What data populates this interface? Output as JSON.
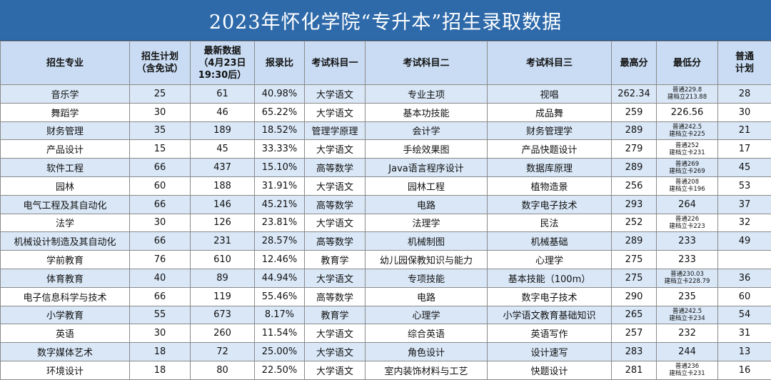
{
  "title": "2023年怀化学院“专升本”招生录取数据",
  "headers": [
    "招生专业",
    "招生计划\n（含免试）",
    "最新数据\n（4月23日\n19:30后）",
    "报录比",
    "考试科目一",
    "考试科目二",
    "考试科目三",
    "最高分",
    "最低分",
    "普通\n计划"
  ],
  "rows": [
    {
      "major": "音乐学",
      "plan": "25",
      "latest": "61",
      "ratio": "40.98%",
      "subj1": "大学语文",
      "subj2": "专业主项",
      "subj3": "视唱",
      "max": "262.34",
      "min_a": "普通229.8",
      "min_b": "建档立213.88",
      "normal": "28"
    },
    {
      "major": "舞蹈学",
      "plan": "30",
      "latest": "46",
      "ratio": "65.22%",
      "subj1": "大学语文",
      "subj2": "基本功技能",
      "subj3": "成品舞",
      "max": "259",
      "min_a": "226.56",
      "min_b": "",
      "normal": "30"
    },
    {
      "major": "财务管理",
      "plan": "35",
      "latest": "189",
      "ratio": "18.52%",
      "subj1": "管理学原理",
      "subj2": "会计学",
      "subj3": "财务管理学",
      "max": "289",
      "min_a": "普通242.5",
      "min_b": "建档立卡225",
      "normal": "21"
    },
    {
      "major": "产品设计",
      "plan": "15",
      "latest": "45",
      "ratio": "33.33%",
      "subj1": "大学语文",
      "subj2": "手绘效果图",
      "subj3": "产品快题设计",
      "max": "279",
      "min_a": "普通252",
      "min_b": "建档立卡231",
      "normal": "17"
    },
    {
      "major": "软件工程",
      "plan": "66",
      "latest": "437",
      "ratio": "15.10%",
      "subj1": "高等数学",
      "subj2": "Java语言程序设计",
      "subj3": "数据库原理",
      "max": "289",
      "min_a": "普通269",
      "min_b": "建档立卡269",
      "normal": "45"
    },
    {
      "major": "园林",
      "plan": "60",
      "latest": "188",
      "ratio": "31.91%",
      "subj1": "大学语文",
      "subj2": "园林工程",
      "subj3": "植物造景",
      "max": "256",
      "min_a": "普通208",
      "min_b": "建档立卡196",
      "normal": "53"
    },
    {
      "major": "电气工程及其自动化",
      "plan": "66",
      "latest": "146",
      "ratio": "45.21%",
      "subj1": "高等数学",
      "subj2": "电路",
      "subj3": "数字电子技术",
      "max": "293",
      "min_a": "264",
      "min_b": "",
      "normal": "37"
    },
    {
      "major": "法学",
      "plan": "30",
      "latest": "126",
      "ratio": "23.81%",
      "subj1": "大学语文",
      "subj2": "法理学",
      "subj3": "民法",
      "max": "252",
      "min_a": "普通226",
      "min_b": "建档立卡223",
      "normal": "32"
    },
    {
      "major": "机械设计制造及其自动化",
      "plan": "66",
      "latest": "231",
      "ratio": "28.57%",
      "subj1": "高等数学",
      "subj2": "机械制图",
      "subj3": "机械基础",
      "max": "289",
      "min_a": "233",
      "min_b": "",
      "normal": "49"
    },
    {
      "major": "学前教育",
      "plan": "76",
      "latest": "610",
      "ratio": "12.46%",
      "subj1": "教育学",
      "subj2": "幼儿园保教知识与能力",
      "subj3": "心理学",
      "max": "275",
      "min_a": "233",
      "min_b": "",
      "normal": ""
    },
    {
      "major": "体育教育",
      "plan": "40",
      "latest": "89",
      "ratio": "44.94%",
      "subj1": "大学语文",
      "subj2": "专项技能",
      "subj3": "基本技能（100m）",
      "max": "275",
      "min_a": "普通230.03",
      "min_b": "建档立卡228.79",
      "normal": "36"
    },
    {
      "major": "电子信息科学与技术",
      "plan": "66",
      "latest": "119",
      "ratio": "55.46%",
      "subj1": "高等数学",
      "subj2": "电路",
      "subj3": "数字电子技术",
      "max": "290",
      "min_a": "235",
      "min_b": "",
      "normal": "60"
    },
    {
      "major": "小学教育",
      "plan": "55",
      "latest": "673",
      "ratio": "8.17%",
      "subj1": "教育学",
      "subj2": "心理学",
      "subj3": "小学语文教育基础知识",
      "max": "265",
      "min_a": "普通242.5",
      "min_b": "建档立卡234",
      "normal": "54"
    },
    {
      "major": "英语",
      "plan": "30",
      "latest": "260",
      "ratio": "11.54%",
      "subj1": "大学语文",
      "subj2": "综合英语",
      "subj3": "英语写作",
      "max": "257",
      "min_a": "232",
      "min_b": "",
      "normal": "31"
    },
    {
      "major": "数字媒体艺术",
      "plan": "18",
      "latest": "72",
      "ratio": "25.00%",
      "subj1": "大学语文",
      "subj2": "角色设计",
      "subj3": "设计速写",
      "max": "283",
      "min_a": "244",
      "min_b": "",
      "normal": "13"
    },
    {
      "major": "环境设计",
      "plan": "18",
      "latest": "80",
      "ratio": "22.50%",
      "subj1": "大学语文",
      "subj2": "室内装饰材料与工艺",
      "subj3": "快题设计",
      "max": "281",
      "min_a": "普通236",
      "min_b": "建档立卡231",
      "normal": "16"
    }
  ]
}
